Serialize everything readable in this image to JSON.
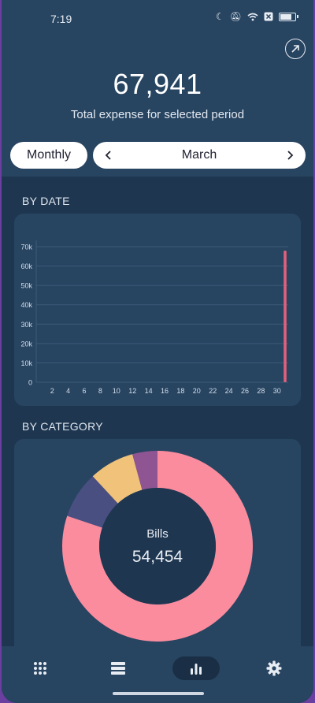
{
  "status_bar": {
    "time": "7:19"
  },
  "summary": {
    "total": "67,941",
    "label": "Total expense for selected period"
  },
  "period": {
    "type_label": "Monthly",
    "month_label": "March"
  },
  "sections": {
    "by_date": "BY DATE",
    "by_category": "BY CATEGORY"
  },
  "chart_data": [
    {
      "type": "bar",
      "title": "",
      "xlabel": "",
      "ylabel": "",
      "x_ticks": [
        "2",
        "4",
        "6",
        "8",
        "10",
        "12",
        "14",
        "16",
        "18",
        "20",
        "22",
        "24",
        "26",
        "28",
        "30"
      ],
      "y_ticks": [
        "0",
        "10k",
        "20k",
        "30k",
        "40k",
        "50k",
        "60k",
        "70k"
      ],
      "ylim": [
        0,
        70000
      ],
      "xlim": [
        1,
        31
      ],
      "series": [
        {
          "x": [
            31
          ],
          "values": [
            67941
          ],
          "color": "#e0607a"
        }
      ],
      "grid": true
    },
    {
      "type": "pie",
      "title": "",
      "center_label": "Bills",
      "center_value": "54,454",
      "slices": [
        {
          "value": 54454,
          "color": "#fa8c9e"
        },
        {
          "value": 5400,
          "color": "#4a4f82"
        },
        {
          "value": 5200,
          "color": "#f0c27a"
        },
        {
          "value": 2887,
          "color": "#8e5592"
        }
      ]
    }
  ],
  "nav": {
    "items": [
      {
        "icon": "grid-icon"
      },
      {
        "icon": "list-icon"
      },
      {
        "icon": "bar-chart-icon",
        "active": true
      },
      {
        "icon": "gear-icon"
      }
    ]
  }
}
